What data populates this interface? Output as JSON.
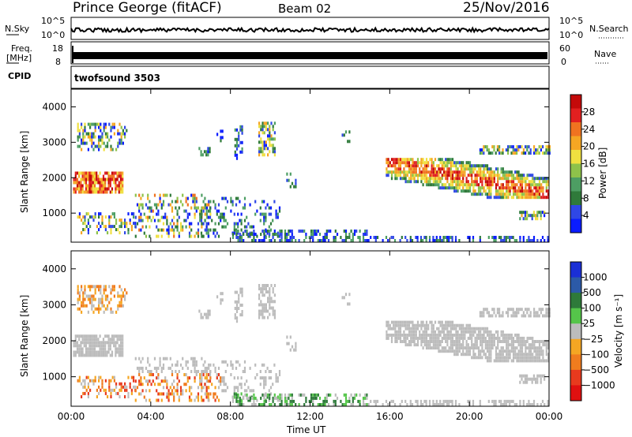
{
  "header": {
    "station": "Prince George (fitACF)",
    "beam": "Beam 02",
    "date": "25/Nov/2016"
  },
  "top_panel": {
    "left_nsky": "N.Sky",
    "nsky_hi": "10^5",
    "nsky_lo": "10^0",
    "right_nsearch": "N.Search",
    "freq_label": "Freq.",
    "freq_unit": "[MHz]",
    "freq_hi": "18",
    "freq_lo": "8",
    "nave_hi": "60",
    "nave_lo": "0",
    "nave_label": "Nave",
    "cpid_label": "CPID",
    "cpid_value": "twofsound 3503"
  },
  "chart_data": [
    {
      "type": "heatmap",
      "title": "",
      "ylabel": "Slant Range [km]",
      "xlabel": "",
      "ylim": [
        180,
        4500
      ],
      "xlim": [
        "00:00",
        "24:00"
      ],
      "y_ticks": [
        1000,
        2000,
        3000,
        4000
      ],
      "colorbar": {
        "label": "Power [dB]",
        "ticks": [
          4,
          8,
          12,
          16,
          20,
          24,
          28
        ],
        "range": [
          0,
          32
        ],
        "colors": [
          "#0a1cff",
          "#2f47e6",
          "#2f7a3a",
          "#4d9e63",
          "#8ec24a",
          "#f0e040",
          "#f5a623",
          "#f07320",
          "#e22020",
          "#c40a0a"
        ]
      }
    },
    {
      "type": "heatmap",
      "title": "",
      "ylabel": "Slant Range [km]",
      "xlabel": "Time UT",
      "ylim": [
        180,
        4500
      ],
      "xlim": [
        "00:00",
        "24:00"
      ],
      "y_ticks": [
        1000,
        2000,
        3000,
        4000
      ],
      "x_ticks": [
        "00:00",
        "04:00",
        "08:00",
        "12:00",
        "16:00",
        "20:00",
        "00:00"
      ],
      "colorbar": {
        "label": "Velocity [m s⁻¹]",
        "ticks": [
          "1000",
          "500",
          "100",
          "25",
          "−25",
          "−100",
          "−500",
          "−1000"
        ],
        "colors": [
          "#1a2fd6",
          "#2c5aa8",
          "#2e7a3a",
          "#55c54a",
          "#bcbcbc",
          "#f5a623",
          "#f07c1e",
          "#e83a1e",
          "#e01010"
        ]
      }
    }
  ],
  "colors": {
    "power_scale": [
      "#0a1cff",
      "#2f47e6",
      "#2f7a3a",
      "#4d9e63",
      "#8ec24a",
      "#f0e040",
      "#f5a623",
      "#f07320",
      "#e22020",
      "#c40a0a"
    ],
    "velocity_scale": [
      "#e01010",
      "#e83a1e",
      "#f07c1e",
      "#f5a623",
      "#bcbcbc",
      "#55c54a",
      "#2e7a3a",
      "#2c5aa8",
      "#1a2fd6"
    ]
  }
}
